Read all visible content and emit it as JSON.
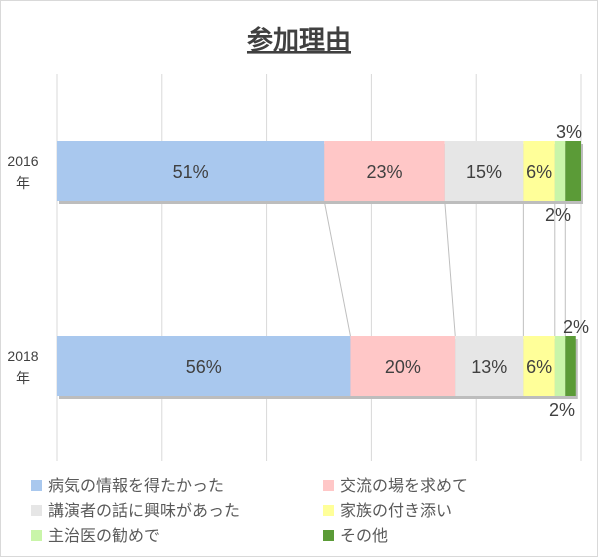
{
  "chart_data": {
    "type": "bar",
    "orientation": "horizontal",
    "stacked": "percent",
    "title": "参加理由",
    "categories": [
      {
        "year": "2016",
        "suffix": "年"
      },
      {
        "year": "2018",
        "suffix": "年"
      }
    ],
    "series": [
      {
        "name": "病気の情報を得たかった",
        "color": "#A9C8EE",
        "values": [
          51,
          56
        ],
        "labels": [
          "51%",
          "56%"
        ]
      },
      {
        "name": "交流の場を求めて",
        "color": "#FFC7C7",
        "values": [
          23,
          20
        ],
        "labels": [
          "23%",
          "20%"
        ]
      },
      {
        "name": "講演者の話に興味があった",
        "color": "#E6E6E6",
        "values": [
          15,
          13
        ],
        "labels": [
          "15%",
          "13%"
        ]
      },
      {
        "name": "家族の付き添い",
        "color": "#FFFF99",
        "values": [
          6,
          6
        ],
        "labels": [
          "6%",
          "6%"
        ]
      },
      {
        "name": "主治医の勧めで",
        "color": "#C9F5A9",
        "values": [
          2,
          2
        ],
        "labels": [
          "2%",
          "2%"
        ]
      },
      {
        "name": "その他",
        "color": "#5B9B37",
        "values": [
          3,
          2
        ],
        "labels": [
          "3%",
          "2%"
        ]
      }
    ],
    "xlim": [
      0,
      100
    ],
    "grid": true,
    "series_lines": true,
    "legend_position": "bottom"
  }
}
